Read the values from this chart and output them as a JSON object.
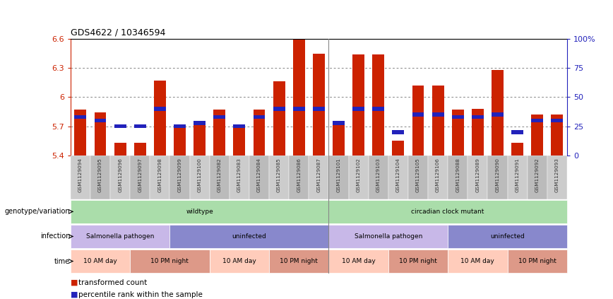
{
  "title": "GDS4622 / 10346594",
  "samples": [
    "GSM1129094",
    "GSM1129095",
    "GSM1129096",
    "GSM1129097",
    "GSM1129098",
    "GSM1129099",
    "GSM1129100",
    "GSM1129082",
    "GSM1129083",
    "GSM1129084",
    "GSM1129085",
    "GSM1129086",
    "GSM1129087",
    "GSM1129101",
    "GSM1129102",
    "GSM1129103",
    "GSM1129104",
    "GSM1129105",
    "GSM1129106",
    "GSM1129088",
    "GSM1129089",
    "GSM1129090",
    "GSM1129091",
    "GSM1129092",
    "GSM1129093"
  ],
  "red_values": [
    5.87,
    5.84,
    5.53,
    5.53,
    6.17,
    5.68,
    5.72,
    5.87,
    5.68,
    5.87,
    6.16,
    6.59,
    6.45,
    5.72,
    6.44,
    6.44,
    5.55,
    6.12,
    6.12,
    5.87,
    5.88,
    6.28,
    5.53,
    5.82,
    5.82
  ],
  "percentile_values": [
    33,
    30,
    25,
    25,
    40,
    25,
    28,
    33,
    25,
    33,
    40,
    40,
    40,
    28,
    40,
    40,
    20,
    35,
    35,
    33,
    33,
    35,
    20,
    30,
    30
  ],
  "ymin": 5.4,
  "ymax": 6.6,
  "yticks": [
    5.4,
    5.7,
    6.0,
    6.3,
    6.6
  ],
  "ytick_labels": [
    "5.4",
    "5.7",
    "6",
    "6.3",
    "6.6"
  ],
  "right_yticks": [
    0,
    25,
    50,
    75,
    100
  ],
  "right_ytick_labels": [
    "0",
    "25",
    "50",
    "75",
    "100%"
  ],
  "bar_color": "#cc2200",
  "dot_color": "#2222bb",
  "genotype_row": {
    "label": "genotype/variation",
    "groups": [
      {
        "text": "wildtype",
        "start": 0,
        "end": 13,
        "color": "#aaddaa"
      },
      {
        "text": "circadian clock mutant",
        "start": 13,
        "end": 25,
        "color": "#aaddaa"
      }
    ]
  },
  "infection_row": {
    "label": "infection",
    "groups": [
      {
        "text": "Salmonella pathogen",
        "start": 0,
        "end": 5,
        "color": "#c8b8e8"
      },
      {
        "text": "uninfected",
        "start": 5,
        "end": 13,
        "color": "#8888cc"
      },
      {
        "text": "Salmonella pathogen",
        "start": 13,
        "end": 19,
        "color": "#c8b8e8"
      },
      {
        "text": "uninfected",
        "start": 19,
        "end": 25,
        "color": "#8888cc"
      }
    ]
  },
  "time_row": {
    "label": "time",
    "groups": [
      {
        "text": "10 AM day",
        "start": 0,
        "end": 3,
        "color": "#ffccbb"
      },
      {
        "text": "10 PM night",
        "start": 3,
        "end": 7,
        "color": "#dd9988"
      },
      {
        "text": "10 AM day",
        "start": 7,
        "end": 10,
        "color": "#ffccbb"
      },
      {
        "text": "10 PM night",
        "start": 10,
        "end": 13,
        "color": "#dd9988"
      },
      {
        "text": "10 AM day",
        "start": 13,
        "end": 16,
        "color": "#ffccbb"
      },
      {
        "text": "10 PM night",
        "start": 16,
        "end": 19,
        "color": "#dd9988"
      },
      {
        "text": "10 AM day",
        "start": 19,
        "end": 22,
        "color": "#ffccbb"
      },
      {
        "text": "10 PM night",
        "start": 22,
        "end": 25,
        "color": "#dd9988"
      }
    ]
  },
  "legend_items": [
    {
      "label": "transformed count",
      "color": "#cc2200"
    },
    {
      "label": "percentile rank within the sample",
      "color": "#2222bb"
    }
  ],
  "grid_color": "#555555",
  "background_color": "#ffffff",
  "xticklabel_bg": "#cccccc"
}
